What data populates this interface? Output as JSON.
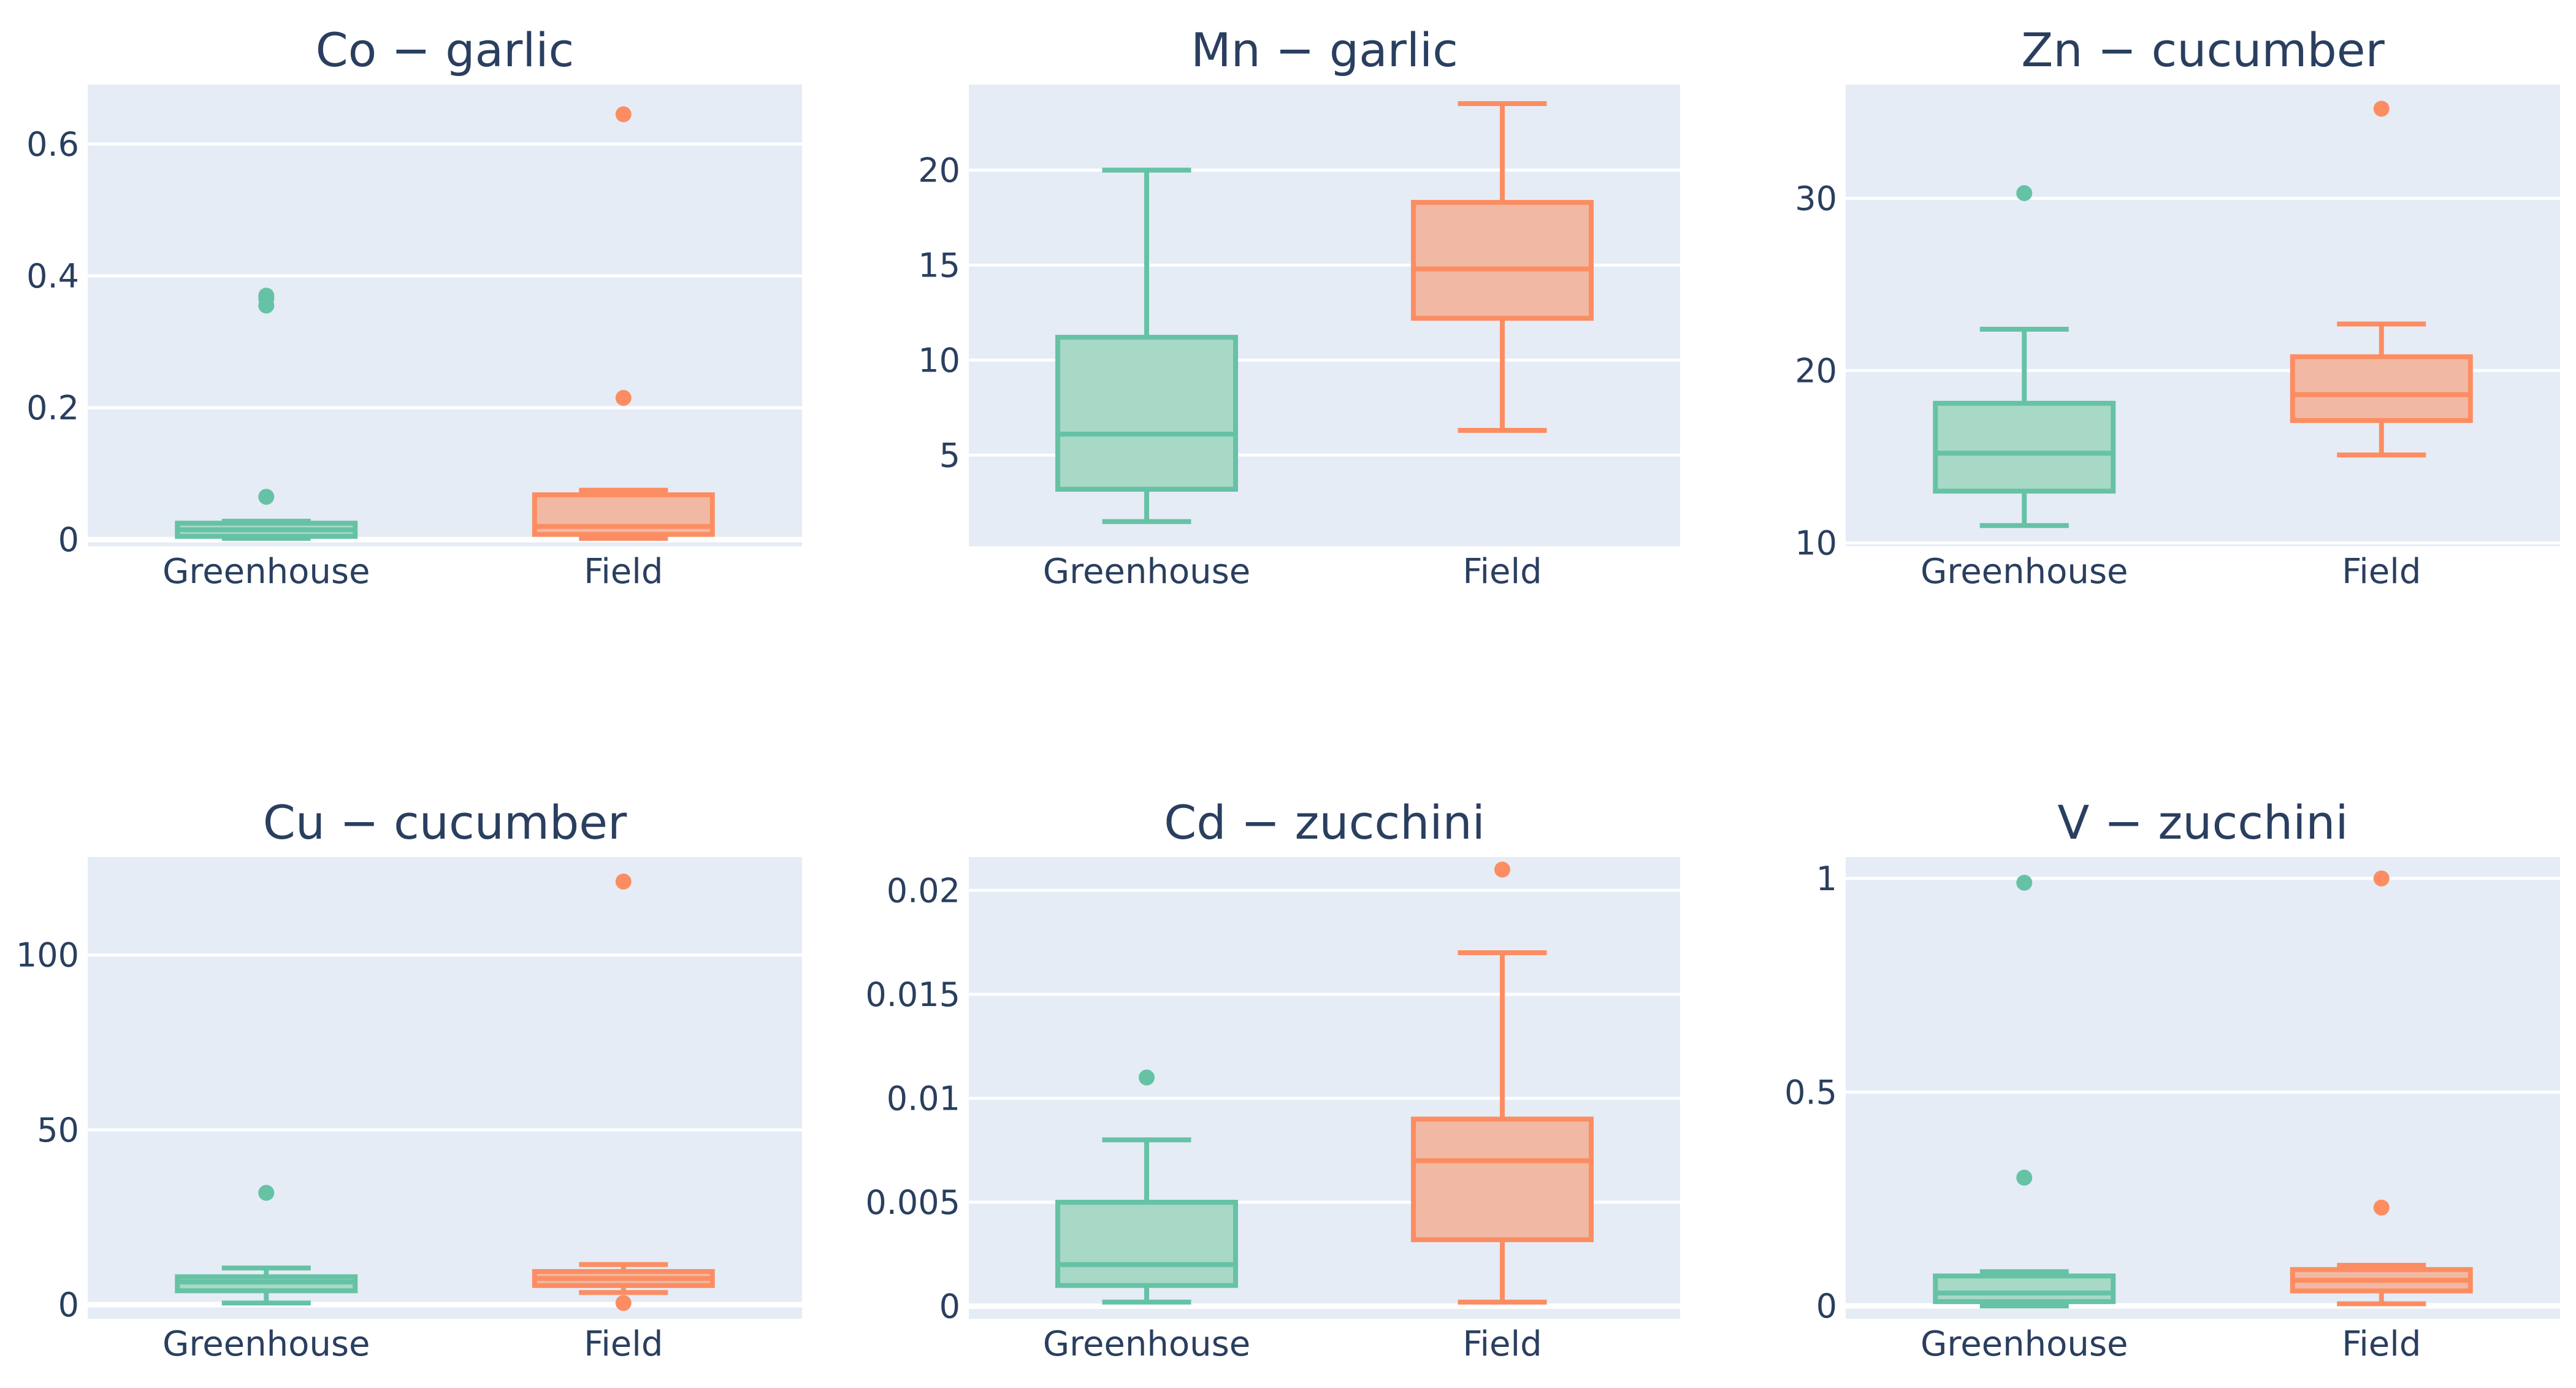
{
  "colors": {
    "greenhouse_line": "#66c2a5",
    "greenhouse_fill": "#a8d8c6",
    "field_line": "#fc8d62",
    "field_fill": "#f1b9a3",
    "plot_background": "#e5ecf6",
    "text": "#2a3f5f"
  },
  "chart_data": [
    {
      "type": "box",
      "title": "Co − garlic",
      "categories": [
        "Greenhouse",
        "Field"
      ],
      "ylim": [
        -0.01,
        0.69
      ],
      "yticks": [
        {
          "v": 0,
          "label": "0"
        },
        {
          "v": 0.2,
          "label": "0.2"
        },
        {
          "v": 0.4,
          "label": "0.4"
        },
        {
          "v": 0.6,
          "label": "0.6"
        }
      ],
      "series": [
        {
          "name": "Greenhouse",
          "whisker_low": 0.002,
          "q1": 0.005,
          "median": 0.015,
          "q3": 0.025,
          "whisker_high": 0.028,
          "outliers": [
            0.065,
            0.355,
            0.365,
            0.37
          ]
        },
        {
          "name": "Field",
          "whisker_low": 0.002,
          "q1": 0.008,
          "median": 0.02,
          "q3": 0.068,
          "whisker_high": 0.075,
          "outliers": [
            0.215,
            0.645
          ]
        }
      ]
    },
    {
      "type": "box",
      "title": "Mn − garlic",
      "categories": [
        "Greenhouse",
        "Field"
      ],
      "ylim": [
        0.2,
        24.5
      ],
      "yticks": [
        {
          "v": 5,
          "label": "5"
        },
        {
          "v": 10,
          "label": "10"
        },
        {
          "v": 15,
          "label": "15"
        },
        {
          "v": 20,
          "label": "20"
        }
      ],
      "series": [
        {
          "name": "Greenhouse",
          "whisker_low": 1.5,
          "q1": 3.2,
          "median": 6.1,
          "q3": 11.2,
          "whisker_high": 20.0,
          "outliers": []
        },
        {
          "name": "Field",
          "whisker_low": 6.3,
          "q1": 12.2,
          "median": 14.8,
          "q3": 18.3,
          "whisker_high": 23.5,
          "outliers": []
        }
      ]
    },
    {
      "type": "box",
      "title": "Zn − cucumber",
      "categories": [
        "Greenhouse",
        "Field"
      ],
      "ylim": [
        9.8,
        36.6
      ],
      "yticks": [
        {
          "v": 10,
          "label": "10"
        },
        {
          "v": 20,
          "label": "20"
        },
        {
          "v": 30,
          "label": "30"
        }
      ],
      "series": [
        {
          "name": "Greenhouse",
          "whisker_low": 11.0,
          "q1": 13.0,
          "median": 15.2,
          "q3": 18.1,
          "whisker_high": 22.4,
          "outliers": [
            30.3
          ]
        },
        {
          "name": "Field",
          "whisker_low": 15.1,
          "q1": 17.1,
          "median": 18.6,
          "q3": 20.8,
          "whisker_high": 22.7,
          "outliers": [
            35.2
          ]
        }
      ]
    },
    {
      "type": "box",
      "title": "Cu − cucumber",
      "categories": [
        "Greenhouse",
        "Field"
      ],
      "ylim": [
        -4,
        128
      ],
      "yticks": [
        {
          "v": 0,
          "label": "0"
        },
        {
          "v": 50,
          "label": "50"
        },
        {
          "v": 100,
          "label": "100"
        }
      ],
      "series": [
        {
          "name": "Greenhouse",
          "whisker_low": 0.5,
          "q1": 4.0,
          "median": 6.5,
          "q3": 8.0,
          "whisker_high": 10.5,
          "outliers": [
            32.0
          ]
        },
        {
          "name": "Field",
          "whisker_low": 3.5,
          "q1": 5.5,
          "median": 7.5,
          "q3": 9.5,
          "whisker_high": 11.5,
          "outliers": [
            0.5,
            121.0
          ]
        }
      ]
    },
    {
      "type": "box",
      "title": "Cd − zucchini",
      "categories": [
        "Greenhouse",
        "Field"
      ],
      "ylim": [
        -0.0006,
        0.0216
      ],
      "yticks": [
        {
          "v": 0,
          "label": "0"
        },
        {
          "v": 0.005,
          "label": "0.005"
        },
        {
          "v": 0.01,
          "label": "0.01"
        },
        {
          "v": 0.015,
          "label": "0.015"
        },
        {
          "v": 0.02,
          "label": "0.02"
        }
      ],
      "series": [
        {
          "name": "Greenhouse",
          "whisker_low": 0.0002,
          "q1": 0.001,
          "median": 0.002,
          "q3": 0.005,
          "whisker_high": 0.008,
          "outliers": [
            0.011
          ]
        },
        {
          "name": "Field",
          "whisker_low": 0.0002,
          "q1": 0.0032,
          "median": 0.007,
          "q3": 0.009,
          "whisker_high": 0.017,
          "outliers": [
            0.021
          ]
        }
      ]
    },
    {
      "type": "box",
      "title": "V − zucchini",
      "categories": [
        "Greenhouse",
        "Field"
      ],
      "ylim": [
        -0.03,
        1.05
      ],
      "yticks": [
        {
          "v": 0,
          "label": "0"
        },
        {
          "v": 0.5,
          "label": "0.5"
        },
        {
          "v": 1,
          "label": "1"
        }
      ],
      "series": [
        {
          "name": "Greenhouse",
          "whisker_low": 0.0,
          "q1": 0.01,
          "median": 0.03,
          "q3": 0.07,
          "whisker_high": 0.08,
          "outliers": [
            0.3,
            0.99
          ]
        },
        {
          "name": "Field",
          "whisker_low": 0.005,
          "q1": 0.035,
          "median": 0.06,
          "q3": 0.085,
          "whisker_high": 0.095,
          "outliers": [
            0.23,
            1.0
          ]
        }
      ]
    }
  ]
}
